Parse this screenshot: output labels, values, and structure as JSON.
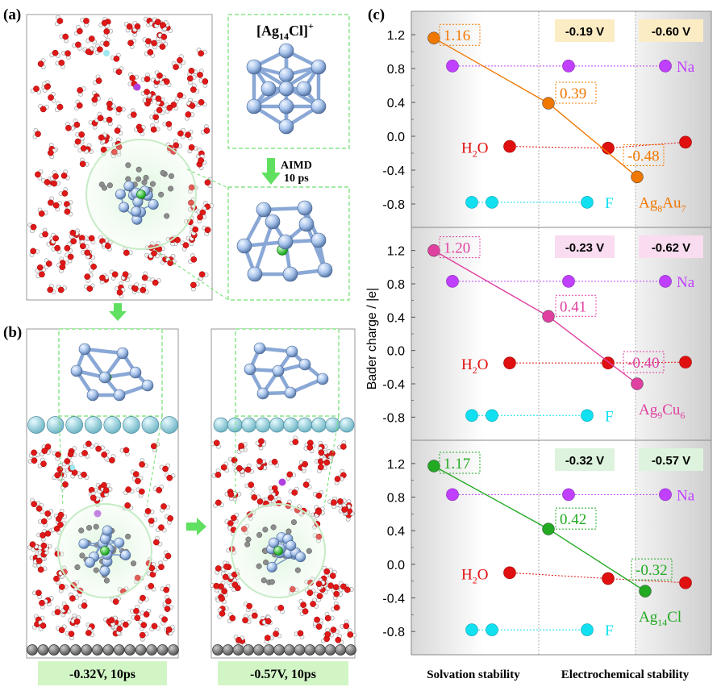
{
  "panel_labels": {
    "a": "(a)",
    "b": "(b)",
    "c": "(c)"
  },
  "panel_a": {
    "cluster_label": "[Ag14Cl]+",
    "cluster_parts": [
      "[Ag",
      "14",
      "Cl]",
      "+"
    ],
    "aimd_line1": "AIMD",
    "aimd_line2": "10 ps"
  },
  "panel_b": {
    "left_caption": "-0.32V, 10ps",
    "right_caption": "-0.57V, 10ps"
  },
  "colors": {
    "orange": "#f07800",
    "magenta": "#e040a0",
    "green": "#22aa22",
    "purple": "#c040ff",
    "red": "#e01010",
    "cyan": "#10e0f0",
    "ag": "#a8c4ec",
    "orange_bg": "#fbecc4",
    "pink_bg": "#f9dcef",
    "green_bg": "#ddf3dd"
  },
  "chart_data": {
    "type": "scatter",
    "ylabel": "Bader charge / |e|",
    "ylim": [
      -1.0,
      1.4
    ],
    "yticks": [
      "1.2",
      "0.8",
      "0.4",
      "0.0",
      "-0.4",
      "-0.8"
    ],
    "ytick_values": [
      1.2,
      0.8,
      0.4,
      0.0,
      -0.4,
      -0.8
    ],
    "x_categories": [
      "Solvation stability",
      "Electrochemical stability"
    ],
    "species_labels": {
      "h2o": "H2O",
      "na": "Na",
      "f": "F"
    },
    "panels": [
      {
        "name": "Ag8Au7",
        "name_parts": [
          "Ag",
          "8",
          "Au",
          "7"
        ],
        "color_key": "orange",
        "bg_key": "orange_bg",
        "potentials": [
          "-0.19 V",
          "-0.60 V"
        ],
        "cluster": [
          1.16,
          0.39,
          -0.48
        ],
        "cluster_labels": [
          "1.16",
          "0.39",
          "-0.48"
        ],
        "na": [
          0.83,
          0.83,
          0.83
        ],
        "h2o": [
          -0.12,
          -0.14,
          -0.07
        ],
        "f": [
          -0.78,
          -0.78,
          -0.78
        ]
      },
      {
        "name": "Ag9Cu6",
        "name_parts": [
          "Ag",
          "9",
          "Cu",
          "6"
        ],
        "color_key": "magenta",
        "bg_key": "pink_bg",
        "potentials": [
          "-0.23 V",
          "-0.62 V"
        ],
        "cluster": [
          1.2,
          0.41,
          -0.4
        ],
        "cluster_labels": [
          "1.20",
          "0.41",
          "-0.40"
        ],
        "na": [
          0.83,
          0.83,
          0.83
        ],
        "h2o": [
          -0.15,
          -0.15,
          -0.14
        ],
        "f": [
          -0.78,
          -0.78,
          -0.78
        ]
      },
      {
        "name": "Ag14Cl",
        "name_parts": [
          "Ag",
          "14",
          "Cl",
          ""
        ],
        "color_key": "green",
        "bg_key": "green_bg",
        "potentials": [
          "-0.32 V",
          "-0.57 V"
        ],
        "cluster": [
          1.17,
          0.42,
          -0.32
        ],
        "cluster_labels": [
          "1.17",
          "0.42",
          "-0.32"
        ],
        "na": [
          0.83,
          0.83,
          0.83
        ],
        "h2o": [
          -0.1,
          -0.17,
          -0.22
        ],
        "f": [
          -0.78,
          -0.78,
          -0.78
        ]
      }
    ]
  }
}
